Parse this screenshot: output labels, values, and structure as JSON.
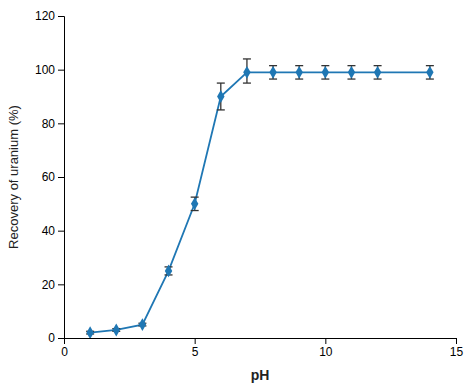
{
  "chart_data": {
    "type": "line",
    "x": [
      1,
      2,
      3,
      4,
      5,
      6,
      7,
      8,
      9,
      10,
      11,
      12,
      14
    ],
    "values": [
      2,
      3,
      5,
      25,
      50,
      90,
      99,
      99,
      99,
      99,
      99,
      99,
      99
    ],
    "yerr_low": [
      0.5,
      0.5,
      0.5,
      1.5,
      2.5,
      5.0,
      4.0,
      2.5,
      2.5,
      2.5,
      2.5,
      2.5,
      2.5
    ],
    "yerr_high": [
      0.5,
      0.5,
      0.5,
      1.5,
      2.5,
      5.0,
      5.0,
      2.5,
      2.5,
      2.5,
      2.5,
      2.5,
      2.5
    ],
    "marker": "diamond",
    "line_style": "solid",
    "x_label": "pH",
    "y_label": "Recovery of uranium (%)",
    "xlim": [
      0,
      15
    ],
    "ylim": [
      0,
      120
    ],
    "xticks": [
      0,
      5,
      10,
      15
    ],
    "yticks": [
      0,
      20,
      40,
      60,
      80,
      100,
      120
    ],
    "grid": false
  }
}
